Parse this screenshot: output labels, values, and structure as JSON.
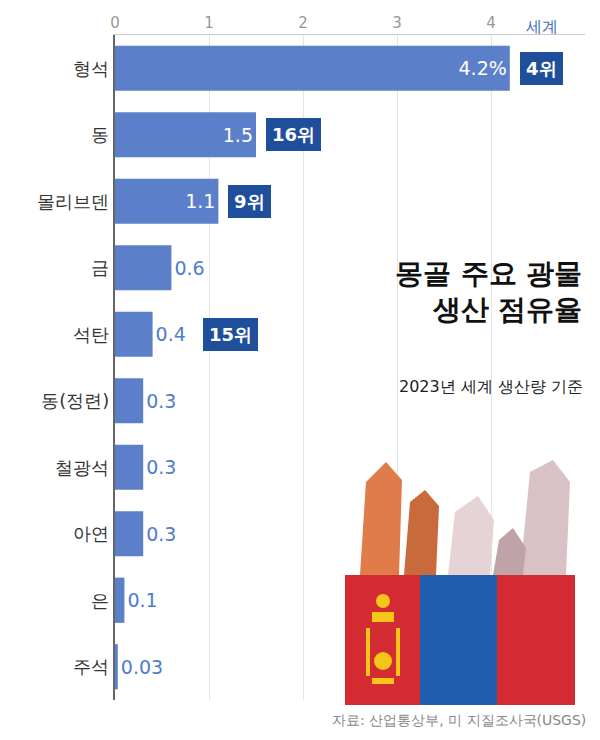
{
  "chart_data": {
    "type": "bar",
    "orientation": "horizontal",
    "title": "몽골 주요 광물\n생산 점유율",
    "subtitle": "2023년 세계 생산량 기준",
    "source": "자료: 산업통상부, 미 지질조사국(USGS)",
    "categories": [
      "형석",
      "동",
      "몰리브덴",
      "금",
      "석탄",
      "동(정련)",
      "철광석",
      "아연",
      "은",
      "주석"
    ],
    "values": [
      4.2,
      1.5,
      1.1,
      0.6,
      0.4,
      0.3,
      0.3,
      0.3,
      0.1,
      0.03
    ],
    "value_labels": [
      "4.2%",
      "1.5",
      "1.1",
      "0.6",
      "0.4",
      "0.3",
      "0.3",
      "0.3",
      "0.1",
      "0.03"
    ],
    "data_labels": true,
    "color": "#5b80c9",
    "xlim": [
      0,
      5
    ],
    "xticks": [
      0,
      1,
      2,
      3,
      4
    ],
    "grid": true,
    "annotations": [
      {
        "category": "형석",
        "text": "4위",
        "label": "세계"
      },
      {
        "category": "동",
        "text": "16위"
      },
      {
        "category": "몰리브덴",
        "text": "9위"
      },
      {
        "category": "석탄",
        "text": "15위"
      }
    ]
  }
}
